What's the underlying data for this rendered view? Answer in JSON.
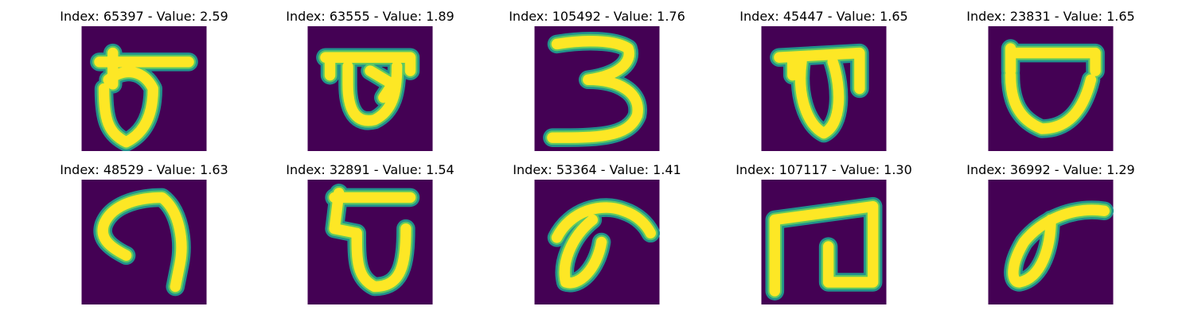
{
  "colors": {
    "background": "#440154",
    "stroke_core": "#fde725",
    "stroke_mid": "#5ec962",
    "stroke_edge": "#21918c"
  },
  "samples": [
    {
      "title": "Index: 65397 - Value: 2.59",
      "index": 65397,
      "value": 2.59
    },
    {
      "title": "Index: 63555 - Value: 1.89",
      "index": 63555,
      "value": 1.89
    },
    {
      "title": "Index: 105492 - Value: 1.76",
      "index": 105492,
      "value": 1.76
    },
    {
      "title": "Index: 45447 - Value: 1.65",
      "index": 45447,
      "value": 1.65
    },
    {
      "title": "Index: 23831 - Value: 1.65",
      "index": 23831,
      "value": 1.65
    },
    {
      "title": "Index: 48529 - Value: 1.63",
      "index": 48529,
      "value": 1.63
    },
    {
      "title": "Index: 32891 - Value: 1.54",
      "index": 32891,
      "value": 1.54
    },
    {
      "title": "Index: 53364 - Value: 1.41",
      "index": 53364,
      "value": 1.41
    },
    {
      "title": "Index: 107117 - Value: 1.30",
      "index": 107117,
      "value": 1.3
    },
    {
      "title": "Index: 36992 - Value: 1.29",
      "index": 36992,
      "value": 1.29
    }
  ]
}
